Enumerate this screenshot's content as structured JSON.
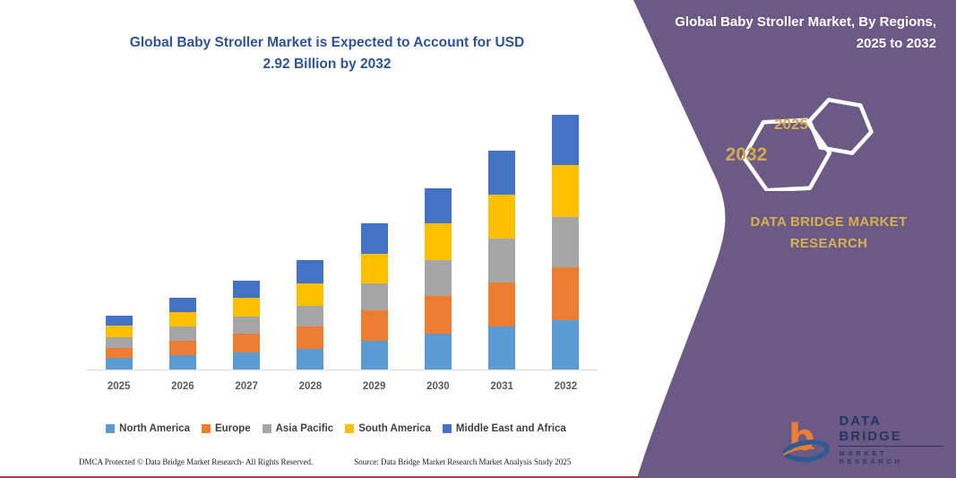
{
  "chart": {
    "title_line1": "Global Baby Stroller Market is Expected to Account for USD",
    "title_line2": "2.92 Billion by 2032"
  },
  "chart_data": {
    "type": "bar",
    "stacked": true,
    "title": "Global Baby Stroller Market is Expected to Account for USD 2.92 Billion by 2032",
    "xlabel": "",
    "ylabel": "",
    "units": "USD Billion",
    "ylim": [
      0,
      3.0
    ],
    "grid": false,
    "legend_position": "bottom",
    "categories": [
      "2025",
      "2026",
      "2027",
      "2028",
      "2029",
      "2030",
      "2031",
      "2032"
    ],
    "series": [
      {
        "name": "North America",
        "color": "#5B9BD5",
        "values": [
          0.13,
          0.16,
          0.2,
          0.24,
          0.33,
          0.41,
          0.49,
          0.57
        ]
      },
      {
        "name": "Europe",
        "color": "#ED7D31",
        "values": [
          0.12,
          0.17,
          0.21,
          0.25,
          0.35,
          0.43,
          0.51,
          0.6
        ]
      },
      {
        "name": "Asia Pacific",
        "color": "#A5A5A5",
        "values": [
          0.12,
          0.16,
          0.2,
          0.24,
          0.31,
          0.41,
          0.5,
          0.58
        ]
      },
      {
        "name": "South America",
        "color": "#FFC000",
        "values": [
          0.13,
          0.17,
          0.21,
          0.26,
          0.34,
          0.42,
          0.5,
          0.59
        ]
      },
      {
        "name": "Middle East and Africa",
        "color": "#4472C4",
        "values": [
          0.12,
          0.16,
          0.2,
          0.26,
          0.34,
          0.41,
          0.51,
          0.58
        ]
      }
    ],
    "totals": [
      0.62,
      0.82,
      1.02,
      1.25,
      1.67,
      2.08,
      2.51,
      2.92
    ]
  },
  "footer": {
    "dmca": "DMCA Protected © Data Bridge Market Research-  All Rights Reserved.",
    "source": "Source: Data Bridge Market Research  Market Analysis Study 2025"
  },
  "side_panel": {
    "heading": "Global Baby Stroller Market, By Regions, 2025 to 2032",
    "hexagon_back_year": "2032",
    "hexagon_front_year": "2025",
    "brand_name": "DATA BRIDGE MARKET RESEARCH",
    "panel_color": "#6A5A85",
    "gold_color": "#D6B14C"
  },
  "logo": {
    "line1": "DATA BRIDGE",
    "line2": "MARKET RESEARCH"
  }
}
